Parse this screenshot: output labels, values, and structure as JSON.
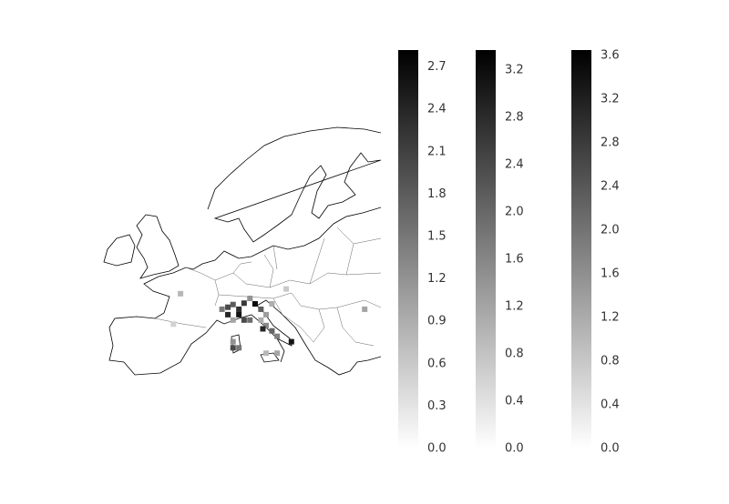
{
  "colorbars": [
    {
      "lim": [
        0,
        2.82
      ],
      "ticks": [
        {
          "value": 0,
          "label": "0.0"
        },
        {
          "value": 0.3,
          "label": "0.3"
        },
        {
          "value": 0.6,
          "label": "0.6"
        },
        {
          "value": 0.9,
          "label": "0.9"
        },
        {
          "value": 1.2,
          "label": "1.2"
        },
        {
          "value": 1.5,
          "label": "1.5"
        },
        {
          "value": 1.8,
          "label": "1.8"
        },
        {
          "value": 2.1,
          "label": "2.1"
        },
        {
          "value": 2.4,
          "label": "2.4"
        },
        {
          "value": 2.7,
          "label": "2.7"
        }
      ]
    },
    {
      "lim": [
        0,
        3.37
      ],
      "ticks": [
        {
          "value": 0,
          "label": "0.0"
        },
        {
          "value": 0.4,
          "label": "0.4"
        },
        {
          "value": 0.8,
          "label": "0.8"
        },
        {
          "value": 1.2,
          "label": "1.2"
        },
        {
          "value": 1.6,
          "label": "1.6"
        },
        {
          "value": 2.0,
          "label": "2.0"
        },
        {
          "value": 2.4,
          "label": "2.4"
        },
        {
          "value": 2.8,
          "label": "2.8"
        },
        {
          "value": 3.2,
          "label": "3.2"
        }
      ]
    },
    {
      "lim": [
        0,
        3.65
      ],
      "ticks": [
        {
          "value": 0,
          "label": "0.0"
        },
        {
          "value": 0.4,
          "label": "0.4"
        },
        {
          "value": 0.8,
          "label": "0.8"
        },
        {
          "value": 1.2,
          "label": "1.2"
        },
        {
          "value": 1.6,
          "label": "1.6"
        },
        {
          "value": 2.0,
          "label": "2.0"
        },
        {
          "value": 2.4,
          "label": "2.4"
        },
        {
          "value": 2.8,
          "label": "2.8"
        },
        {
          "value": 3.2,
          "label": "3.2"
        },
        {
          "value": 3.6,
          "label": "3.6"
        }
      ]
    }
  ],
  "cells": [
    {
      "lon": 1.1,
      "lat": 47.4,
      "value": 0.8
    },
    {
      "lon": 7.5,
      "lat": 45.1,
      "value": 1.5
    },
    {
      "lon": 8.4,
      "lat": 45.4,
      "value": 2.0
    },
    {
      "lon": 9.2,
      "lat": 45.8,
      "value": 1.8
    },
    {
      "lon": 10.1,
      "lat": 45.1,
      "value": 2.3
    },
    {
      "lon": 10.9,
      "lat": 46.0,
      "value": 2.2
    },
    {
      "lon": 11.8,
      "lat": 46.7,
      "value": 1.2
    },
    {
      "lon": 12.6,
      "lat": 45.9,
      "value": 2.7
    },
    {
      "lon": 13.5,
      "lat": 45.1,
      "value": 1.8
    },
    {
      "lon": 8.4,
      "lat": 44.3,
      "value": 2.4
    },
    {
      "lon": 10.1,
      "lat": 44.3,
      "value": 2.6
    },
    {
      "lon": 10.9,
      "lat": 43.5,
      "value": 2.0
    },
    {
      "lon": 11.8,
      "lat": 43.5,
      "value": 1.6
    },
    {
      "lon": 9.2,
      "lat": 43.5,
      "value": 1.0
    },
    {
      "lon": 13.5,
      "lat": 43.5,
      "value": 0.9
    },
    {
      "lon": 14.3,
      "lat": 44.3,
      "value": 1.1
    },
    {
      "lon": 15.2,
      "lat": 45.9,
      "value": 0.9
    },
    {
      "lon": 17.4,
      "lat": 48.1,
      "value": 0.6
    },
    {
      "lon": 14.3,
      "lat": 42.7,
      "value": 1.3
    },
    {
      "lon": 15.2,
      "lat": 41.9,
      "value": 1.7
    },
    {
      "lon": 16.0,
      "lat": 41.1,
      "value": 1.4
    },
    {
      "lon": 18.2,
      "lat": 40.3,
      "value": 2.6
    },
    {
      "lon": 13.8,
      "lat": 42.2,
      "value": 2.4
    },
    {
      "lon": 9.2,
      "lat": 40.3,
      "value": 1.2
    },
    {
      "lon": 10.1,
      "lat": 39.4,
      "value": 1.5
    },
    {
      "lon": 9.2,
      "lat": 39.4,
      "value": 2.0
    },
    {
      "lon": 14.3,
      "lat": 38.6,
      "value": 0.8
    },
    {
      "lon": 16.0,
      "lat": 38.6,
      "value": 1.0
    },
    {
      "lon": 29.5,
      "lat": 45.1,
      "value": 1.0
    },
    {
      "lon": 0.0,
      "lat": 42.9,
      "value": 0.5
    }
  ]
}
